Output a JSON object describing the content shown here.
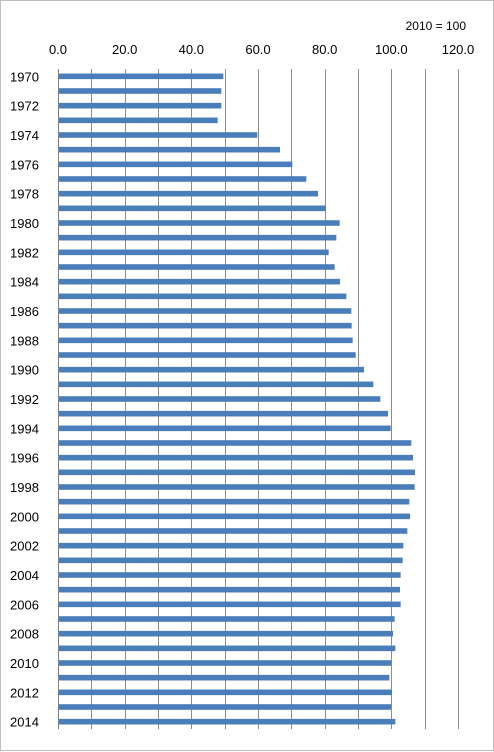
{
  "chart_data": {
    "type": "bar",
    "orientation": "horizontal",
    "note": "2010 = 100",
    "title": "",
    "xlabel": "",
    "ylabel": "",
    "xlim": [
      0,
      120
    ],
    "x_ticks": [
      "0.0",
      "20.0",
      "40.0",
      "60.0",
      "80.0",
      "100.0",
      "120.0"
    ],
    "grid": true,
    "bar_color": "#4a7ebb",
    "categories": [
      1970,
      1971,
      1972,
      1973,
      1974,
      1975,
      1976,
      1977,
      1978,
      1979,
      1980,
      1981,
      1982,
      1983,
      1984,
      1985,
      1986,
      1987,
      1988,
      1989,
      1990,
      1991,
      1992,
      1993,
      1994,
      1995,
      1996,
      1997,
      1998,
      1999,
      2000,
      2001,
      2002,
      2003,
      2004,
      2005,
      2006,
      2007,
      2008,
      2009,
      2010,
      2011,
      2012,
      2013,
      2014
    ],
    "category_labels": [
      "1970",
      "",
      "1972",
      "",
      "1974",
      "",
      "1976",
      "",
      "1978",
      "",
      "1980",
      "",
      "1982",
      "",
      "1984",
      "",
      "1986",
      "",
      "1988",
      "",
      "1990",
      "",
      "1992",
      "",
      "1994",
      "",
      "1996",
      "",
      "1998",
      "",
      "2000",
      "",
      "2002",
      "",
      "2004",
      "",
      "2006",
      "",
      "2008",
      "",
      "2010",
      "",
      "2012",
      "",
      "2014"
    ],
    "values": [
      49.6,
      49.0,
      49.0,
      47.9,
      59.8,
      66.6,
      70.3,
      74.5,
      78.0,
      80.3,
      84.5,
      83.5,
      81.2,
      83.0,
      84.6,
      86.5,
      88.0,
      88.1,
      88.4,
      89.3,
      91.8,
      94.6,
      96.7,
      99.0,
      99.8,
      106.0,
      106.5,
      107.1,
      107.0,
      105.4,
      105.6,
      104.8,
      103.6,
      103.4,
      102.8,
      102.6,
      102.8,
      101.0,
      100.5,
      101.2,
      100.0,
      99.4,
      100.2,
      99.9,
      101.2
    ]
  }
}
